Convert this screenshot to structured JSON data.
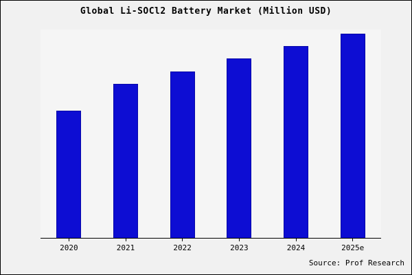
{
  "chart_data": {
    "type": "bar",
    "title": "Global Li-SOCl2 Battery Market (Million USD)",
    "categories": [
      "2020",
      "2021",
      "2022",
      "2023",
      "2024",
      "2025e"
    ],
    "values": [
      61,
      74,
      80,
      86,
      92,
      98
    ],
    "xlabel": "",
    "ylabel": "",
    "ylim": [
      0,
      100
    ],
    "grid": false,
    "legend": "none",
    "bar_color": "#0d0dd3",
    "note": "y-axis unlabeled; values estimated relative to plot height"
  },
  "source_text": "Source: Prof Research"
}
